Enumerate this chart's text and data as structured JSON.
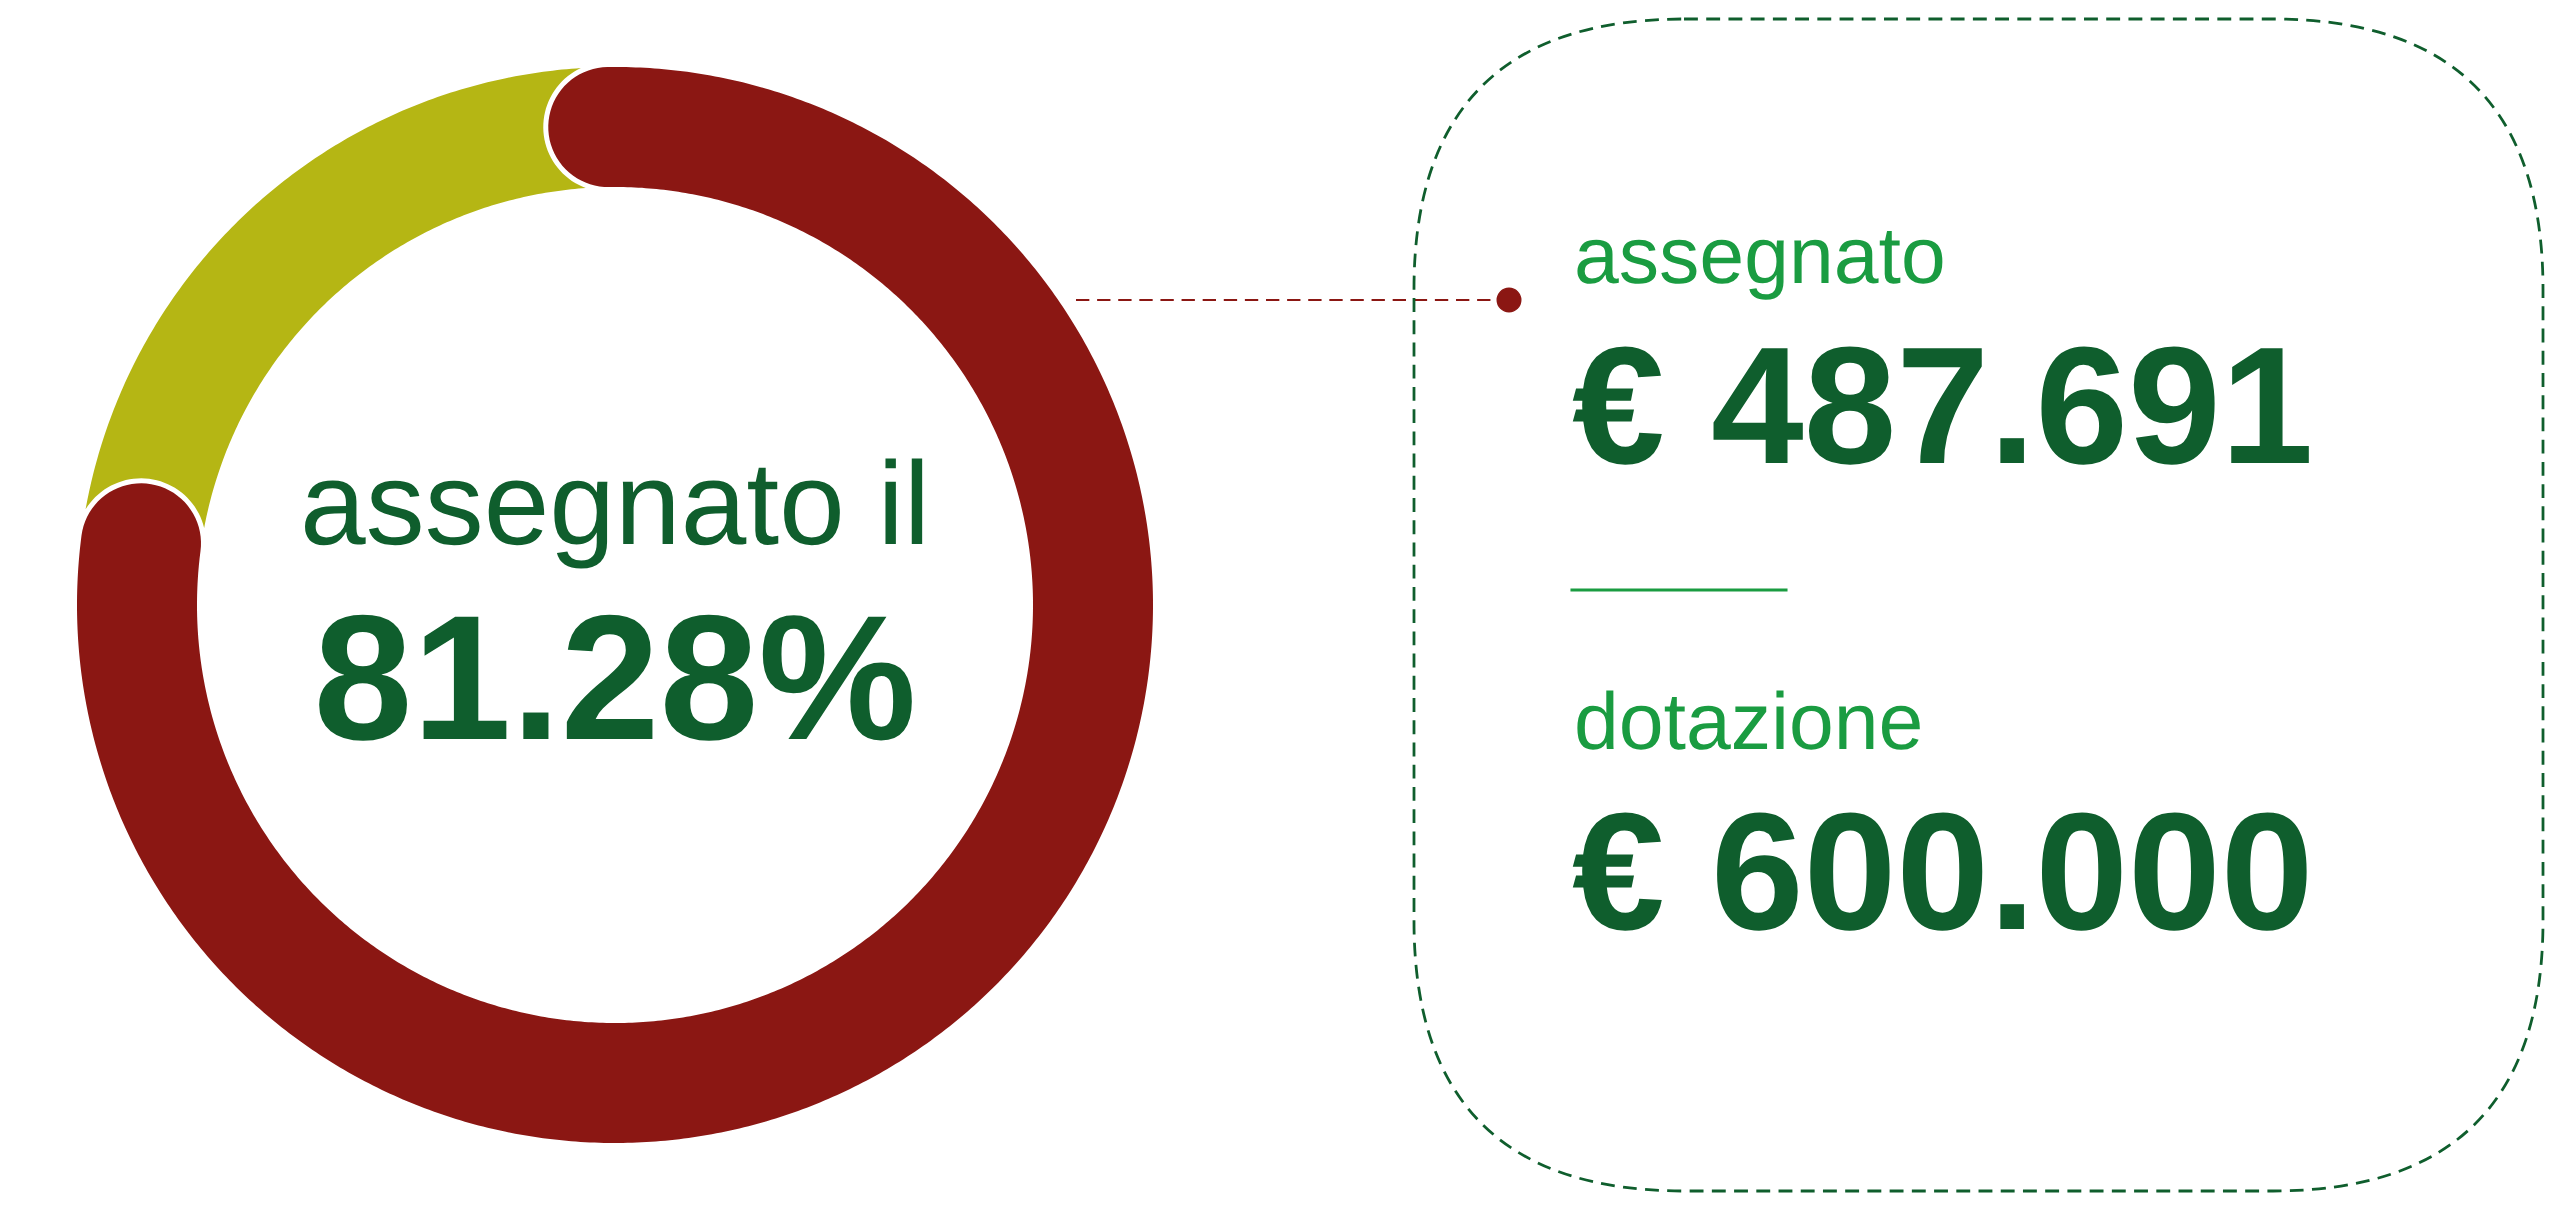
{
  "chart_data": [
    {
      "type": "donut",
      "categories": [
        null,
        null
      ],
      "values": [
        81.28,
        18.72
      ],
      "colors": [
        "#8b1713",
        "#b5b614"
      ],
      "annotations": [
        "assegnato il",
        "81.28%"
      ]
    },
    {
      "type": "other",
      "annotations": [
        "assegnato",
        "€ 487.691",
        "dotazione",
        "€ 600.000"
      ]
    }
  ]
}
